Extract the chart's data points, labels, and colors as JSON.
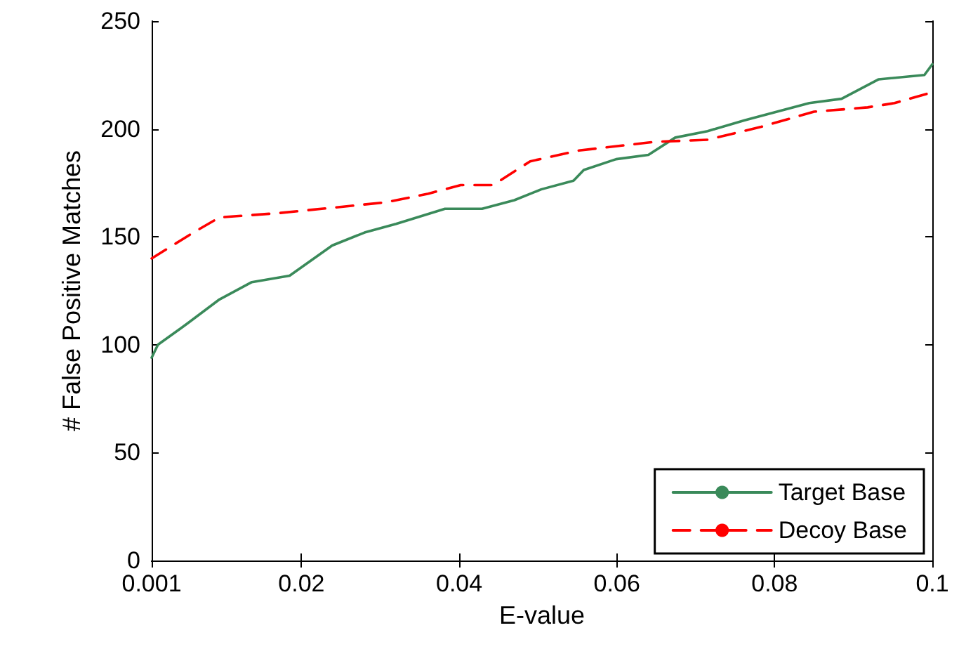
{
  "chart_data": {
    "type": "line",
    "xlabel": "E-value",
    "ylabel": "# False Positive Matches",
    "xlim": [
      0.001,
      0.1
    ],
    "xticks": [
      0.001,
      0.02,
      0.04,
      0.06,
      0.08,
      0.1
    ],
    "ylim": [
      0,
      250
    ],
    "yticks": [
      0,
      50,
      100,
      150,
      200,
      250
    ],
    "grid": false,
    "legend": "bottom right",
    "marker": "none",
    "series": [
      {
        "name": "Target Base",
        "color": "#3a8a5a",
        "line_style": "solid",
        "x": [
          0.001,
          0.0018,
          0.0056,
          0.0096,
          0.0137,
          0.0185,
          0.0239,
          0.028,
          0.032,
          0.0382,
          0.0429,
          0.047,
          0.0504,
          0.0545,
          0.0558,
          0.0599,
          0.064,
          0.0674,
          0.0715,
          0.0762,
          0.0803,
          0.0844,
          0.0885,
          0.0932,
          0.099,
          0.1
        ],
        "values": [
          94,
          100,
          110,
          121,
          129,
          132,
          146,
          152,
          156,
          163,
          163,
          167,
          172,
          176,
          181,
          186,
          188,
          196,
          199,
          204,
          208,
          212,
          214,
          223,
          225,
          230
        ]
      },
      {
        "name": "Decoy Base",
        "color": "#ff0000",
        "line_style": "dashed",
        "x": [
          0.001,
          0.0063,
          0.0096,
          0.0171,
          0.0253,
          0.0307,
          0.0361,
          0.0402,
          0.0443,
          0.049,
          0.0552,
          0.0647,
          0.0715,
          0.0783,
          0.085,
          0.0918,
          0.0952,
          0.1
        ],
        "values": [
          140,
          152,
          159,
          161,
          164,
          166,
          170,
          174,
          174,
          185,
          190,
          194,
          195,
          201,
          208,
          210,
          212,
          217
        ]
      }
    ]
  }
}
